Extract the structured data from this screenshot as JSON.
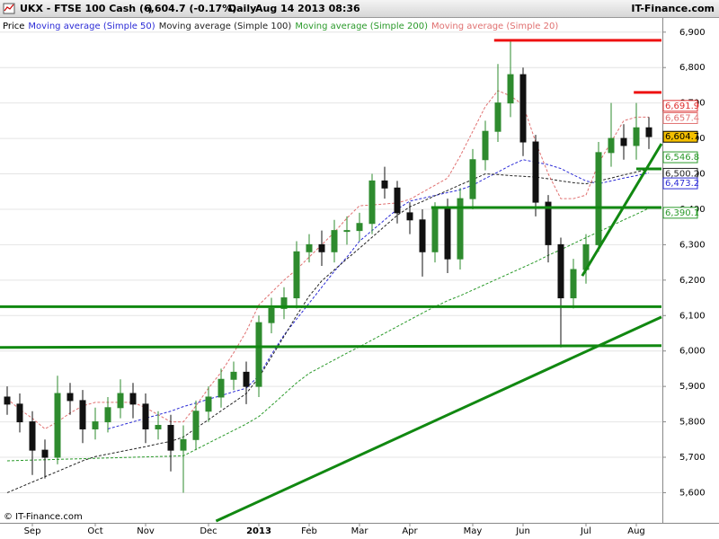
{
  "chart_data": {
    "type": "candlestick",
    "title": "UKX - FTSE 100 Cash (-)",
    "quote": "6,604.7 (-0.17%)",
    "interval": "Daily",
    "timestamp": "Aug 14 2013 08:36",
    "source": "IT-Finance.com",
    "footer": "© IT-Finance.com",
    "categories": [
      null,
      null,
      "Sep",
      null,
      null,
      null,
      null,
      "Oct",
      null,
      null,
      null,
      "Nov",
      null,
      null,
      null,
      null,
      "Dec",
      null,
      null,
      null,
      "2013",
      null,
      null,
      null,
      "Feb",
      null,
      null,
      null,
      "Mar",
      null,
      null,
      null,
      "Apr",
      null,
      null,
      null,
      null,
      "May",
      null,
      null,
      null,
      "Jun",
      null,
      null,
      null,
      null,
      "Jul",
      null,
      null,
      null,
      "Aug",
      null
    ],
    "ylim": [
      5520,
      6940
    ],
    "yticks": [
      {
        "value": 5600,
        "label": "5,600"
      },
      {
        "value": 5700,
        "label": "5,700"
      },
      {
        "value": 5800,
        "label": "5,800"
      },
      {
        "value": 5900,
        "label": "5,900"
      },
      {
        "value": 6000,
        "label": "6,000"
      },
      {
        "value": 6100,
        "label": "6,100"
      },
      {
        "value": 6200,
        "label": "6,200"
      },
      {
        "value": 6300,
        "label": "6,300"
      },
      {
        "value": 6400,
        "label": "6,400"
      },
      {
        "value": 6500,
        "label": "6,500"
      },
      {
        "value": 6600,
        "label": "6,600"
      },
      {
        "value": 6700,
        "label": "6,700"
      },
      {
        "value": 6800,
        "label": "6,800"
      },
      {
        "value": 6900,
        "label": "6,900"
      }
    ],
    "grid": true,
    "up_color": "#2e8b2e",
    "down_color": "#111111",
    "series": [
      {
        "name": "Price",
        "color": "#000000",
        "open": [
          5870,
          5850,
          5800,
          5720,
          5700,
          5880,
          5860,
          5780,
          5800,
          5840,
          5880,
          5850,
          5780,
          5790,
          5720,
          5750,
          5830,
          5870,
          5920,
          5940,
          5900,
          6080,
          6120,
          6150,
          6280,
          6300,
          6280,
          6340,
          6340,
          6360,
          6480,
          6460,
          6390,
          6370,
          6280,
          6400,
          6260,
          6430,
          6540,
          6620,
          6700,
          6780,
          6590,
          6420,
          6300,
          6150,
          6230,
          6300,
          6560,
          6600,
          6580,
          6630
        ],
        "high": [
          5900,
          5880,
          5830,
          5750,
          5930,
          5910,
          5890,
          5840,
          5870,
          5920,
          5910,
          5880,
          5830,
          5820,
          5790,
          5860,
          5900,
          5950,
          5970,
          5970,
          6100,
          6150,
          6180,
          6310,
          6330,
          6340,
          6370,
          6380,
          6390,
          6500,
          6520,
          6480,
          6420,
          6400,
          6420,
          6430,
          6460,
          6570,
          6650,
          6810,
          6875,
          6800,
          6610,
          6440,
          6320,
          6260,
          6330,
          6590,
          6700,
          6640,
          6700,
          6660
        ],
        "low": [
          5820,
          5770,
          5650,
          5640,
          5680,
          5820,
          5740,
          5750,
          5770,
          5810,
          5810,
          5740,
          5750,
          5660,
          5600,
          5720,
          5800,
          5840,
          5890,
          5850,
          5870,
          6050,
          6090,
          6120,
          6250,
          6240,
          6250,
          6300,
          6310,
          6330,
          6430,
          6360,
          6330,
          6210,
          6250,
          6220,
          6230,
          6400,
          6510,
          6590,
          6660,
          6550,
          6380,
          6250,
          6010,
          6120,
          6190,
          6280,
          6520,
          6540,
          6540,
          6570
        ],
        "close": [
          5850,
          5800,
          5720,
          5700,
          5880,
          5860,
          5780,
          5800,
          5840,
          5880,
          5850,
          5780,
          5790,
          5720,
          5750,
          5830,
          5870,
          5920,
          5940,
          5900,
          6080,
          6120,
          6150,
          6280,
          6300,
          6280,
          6340,
          6340,
          6360,
          6480,
          6460,
          6390,
          6370,
          6280,
          6400,
          6260,
          6430,
          6540,
          6620,
          6700,
          6780,
          6590,
          6420,
          6300,
          6150,
          6230,
          6300,
          6560,
          6600,
          6580,
          6630,
          6605
        ]
      },
      {
        "name": "Moving average (Simple 50)",
        "color": "#2b2bd6",
        "values": [
          null,
          null,
          null,
          null,
          null,
          null,
          null,
          null,
          5780,
          5790,
          5800,
          5810,
          5820,
          5830,
          5843,
          5853,
          5864,
          5874,
          5885,
          5895,
          5930,
          5990,
          6045,
          6090,
          6135,
          6180,
          6225,
          6265,
          6310,
          6340,
          6370,
          6400,
          6423,
          6431,
          6439,
          6447,
          6455,
          6468,
          6487,
          6505,
          6524,
          6540,
          6533,
          6526,
          6515,
          6497,
          6480,
          6472,
          6480,
          6488,
          6495,
          6503
        ]
      },
      {
        "name": "Moving average (Simple 100)",
        "color": "#222222",
        "values": [
          5600,
          5615,
          5630,
          5645,
          5660,
          5675,
          5690,
          5702,
          5709,
          5716,
          5723,
          5730,
          5738,
          5745,
          5757,
          5782,
          5806,
          5831,
          5855,
          5880,
          5925,
          5983,
          6041,
          6100,
          6155,
          6198,
          6229,
          6260,
          6290,
          6321,
          6352,
          6383,
          6407,
          6422,
          6438,
          6453,
          6469,
          6484,
          6500,
          6498,
          6495,
          6493,
          6491,
          6486,
          6480,
          6475,
          6472,
          6480,
          6488,
          6497,
          6505,
          6514
        ]
      },
      {
        "name": "Moving average (Simple 200)",
        "color": "#2a9a2a",
        "values": [
          5690,
          5691,
          5692,
          5693,
          5694,
          5695,
          5696,
          5697,
          5698,
          5699,
          5700,
          5701,
          5702,
          5703,
          5704,
          5722,
          5740,
          5758,
          5776,
          5794,
          5815,
          5846,
          5878,
          5910,
          5937,
          5956,
          5975,
          5994,
          6012,
          6031,
          6050,
          6069,
          6088,
          6107,
          6125,
          6142,
          6156,
          6172,
          6188,
          6204,
          6220,
          6236,
          6252,
          6270,
          6286,
          6303,
          6320,
          6336,
          6353,
          6370,
          6386,
          6403
        ]
      },
      {
        "name": "Moving average (Simple 20)",
        "color": "#e07070",
        "values": [
          5865,
          5835,
          5810,
          5780,
          5800,
          5825,
          5845,
          5855,
          5855,
          5855,
          5855,
          5840,
          5820,
          5800,
          5800,
          5845,
          5895,
          5940,
          5995,
          6055,
          6130,
          6165,
          6200,
          6230,
          6265,
          6300,
          6335,
          6375,
          6410,
          6412,
          6415,
          6418,
          6428,
          6448,
          6468,
          6488,
          6550,
          6620,
          6690,
          6735,
          6720,
          6695,
          6590,
          6500,
          6430,
          6430,
          6440,
          6530,
          6590,
          6650,
          6660,
          6660
        ]
      }
    ],
    "trendlines": [
      {
        "color": "#118811",
        "x": [
          -0.6,
          52
        ],
        "y": [
          6125,
          6125
        ]
      },
      {
        "color": "#118811",
        "x": [
          -0.6,
          52
        ],
        "y": [
          6010,
          6015
        ]
      },
      {
        "color": "#118811",
        "x": [
          33.7,
          52
        ],
        "y": [
          6405,
          6405
        ]
      },
      {
        "color": "#118811",
        "x": [
          16.6,
          52
        ],
        "y": [
          5520,
          6096
        ]
      },
      {
        "color": "#118811",
        "x": [
          45.7,
          52
        ],
        "y": [
          6212,
          6585
        ]
      },
      {
        "color": "#118811",
        "x": [
          50,
          52
        ],
        "y": [
          6514,
          6514
        ]
      },
      {
        "color": "#ee1111",
        "x": [
          38.7,
          52
        ],
        "y": [
          6877,
          6877
        ]
      },
      {
        "color": "#ee1111",
        "x": [
          49.8,
          52
        ],
        "y": [
          6730,
          6730
        ]
      }
    ],
    "price_tags": [
      {
        "value": 6691.9,
        "label": "6,691.9",
        "color": "#e03030",
        "fill": "#ffffff"
      },
      {
        "value": 6657.4,
        "label": "6,657.4",
        "color": "#e07070",
        "fill": "#ffffff"
      },
      {
        "value": 6546.8,
        "label": "6,546.8",
        "color": "#2a9a2a",
        "fill": "#ffffff"
      },
      {
        "value": 6500.2,
        "label": "6,500.2",
        "color": "#222222",
        "fill": "#ffffff"
      },
      {
        "value": 6473.2,
        "label": "6,473.2",
        "color": "#2b2bd6",
        "fill": "#ffffff"
      },
      {
        "value": 6390.1,
        "label": "6,390.1",
        "color": "#2a9a2a",
        "fill": "#ffffff"
      },
      {
        "value": 6604.7,
        "label": "6,604.7",
        "color": "#000000",
        "fill": "#f5c000"
      }
    ]
  }
}
